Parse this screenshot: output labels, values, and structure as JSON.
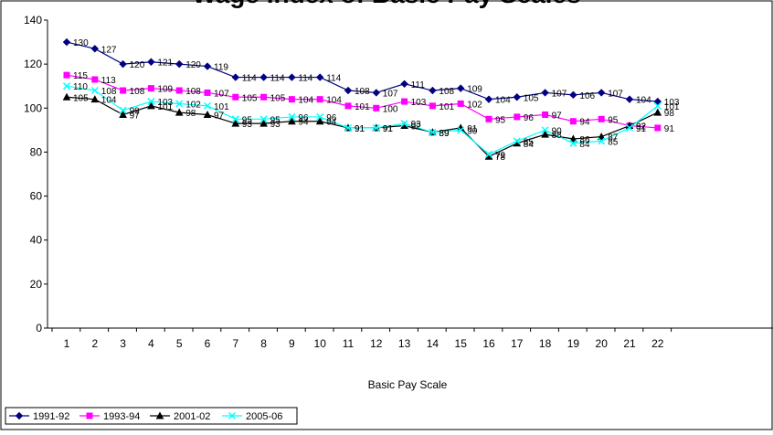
{
  "title": "Wage Index of Basic Pay Scales",
  "chart_data": {
    "type": "line",
    "title": "Wage Index of Basic Pay Scales",
    "xlabel": "Basic Pay Scale",
    "ylabel": "",
    "categories": [
      "1",
      "2",
      "3",
      "4",
      "5",
      "6",
      "7",
      "8",
      "9",
      "10",
      "11",
      "12",
      "13",
      "14",
      "15",
      "16",
      "17",
      "18",
      "19",
      "20",
      "21",
      "22"
    ],
    "ylim": [
      0,
      140
    ],
    "yticks": [
      "0",
      "20",
      "40",
      "60",
      "80",
      "100",
      "120",
      "140"
    ],
    "grid": false,
    "legend_position": "bottom-left",
    "series": [
      {
        "name": "1991-92",
        "color": "#000080",
        "marker": "diamond",
        "values": [
          130,
          127,
          120,
          121,
          120,
          119,
          114,
          114,
          114,
          114,
          108,
          107,
          111,
          108,
          109,
          104,
          105,
          107,
          106,
          107,
          104,
          103
        ]
      },
      {
        "name": "1993-94",
        "color": "#ff00ff",
        "marker": "square",
        "values": [
          115,
          113,
          108,
          109,
          108,
          107,
          105,
          105,
          104,
          104,
          101,
          100,
          103,
          101,
          102,
          95,
          96,
          97,
          94,
          95,
          92,
          91
        ]
      },
      {
        "name": "2001-02",
        "color": "#000000",
        "marker": "triangle",
        "values": [
          105,
          104,
          97,
          101,
          98,
          97,
          93,
          93,
          94,
          94,
          91,
          91,
          92,
          89,
          91,
          78,
          84,
          88,
          86,
          87,
          92,
          98
        ]
      },
      {
        "name": "2005-06",
        "color": "#00ffff",
        "marker": "x",
        "values": [
          110,
          108,
          99,
          103,
          102,
          101,
          95,
          95,
          96,
          96,
          91,
          91,
          93,
          89,
          90,
          79,
          85,
          90,
          84,
          85,
          91,
          101
        ]
      }
    ]
  }
}
